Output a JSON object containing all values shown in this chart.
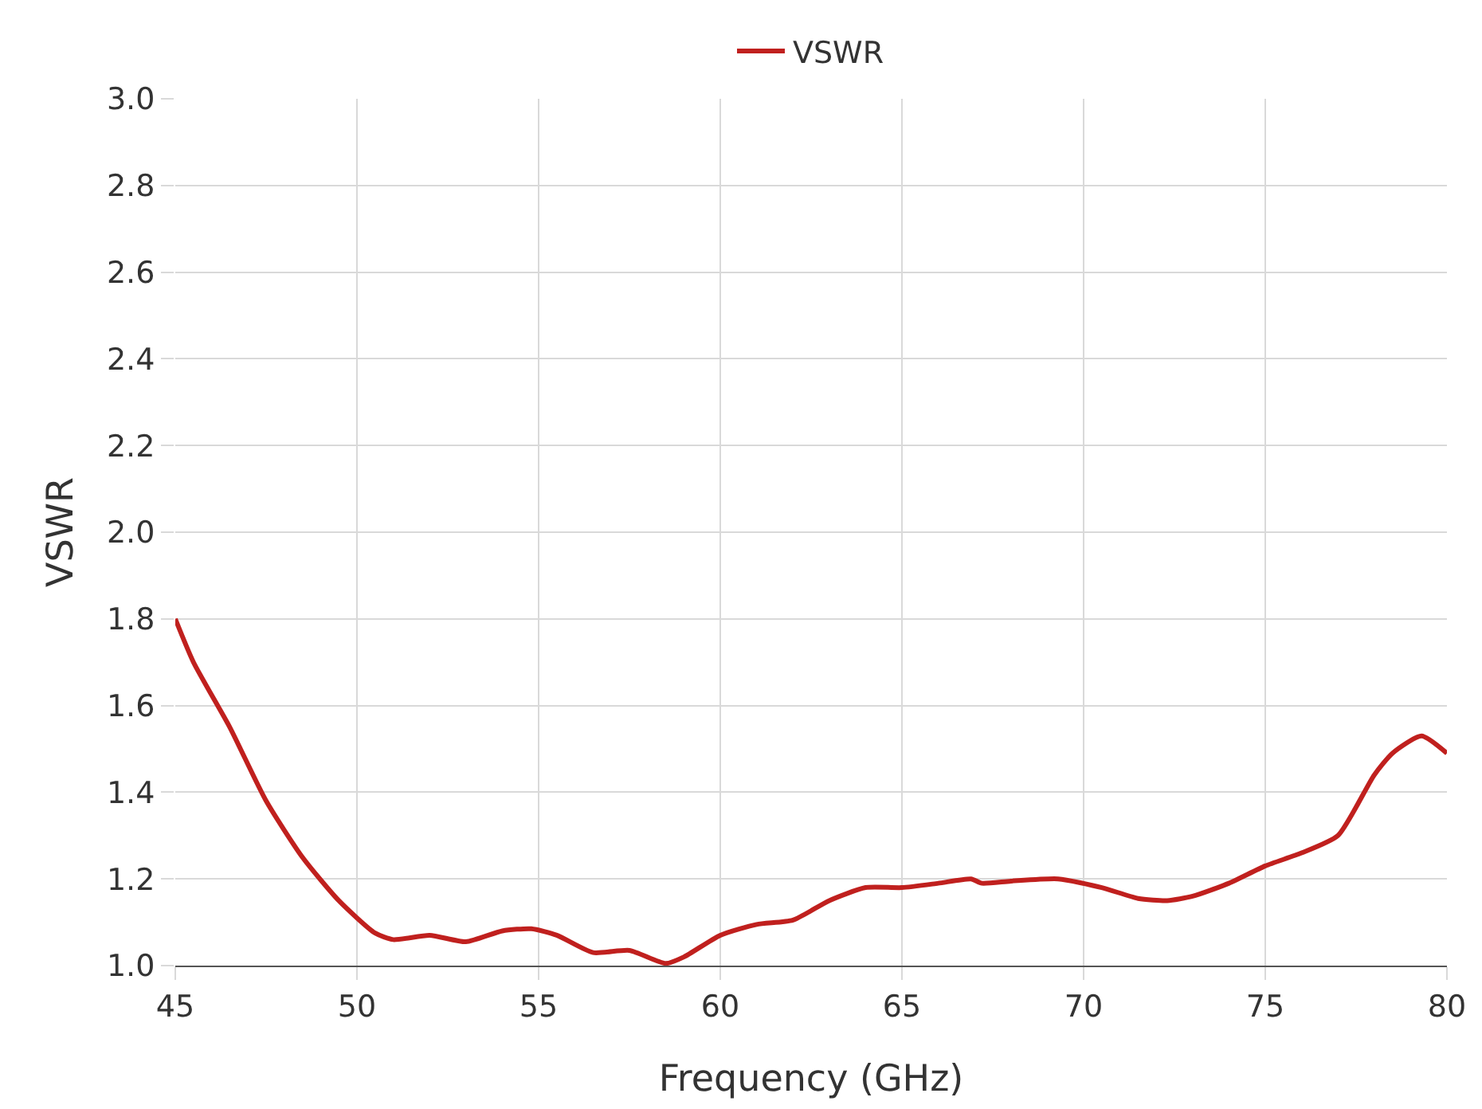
{
  "chart_data": {
    "type": "line",
    "xlabel": "Frequency (GHz)",
    "ylabel": "VSWR",
    "x": [
      45,
      45.5,
      46.5,
      47.5,
      48.5,
      49.5,
      50.5,
      51,
      52,
      53,
      54,
      54.8,
      55.5,
      56.5,
      57.5,
      58.5,
      59,
      60,
      61,
      62,
      63,
      64,
      65,
      66,
      66.9,
      67.2,
      68,
      69.3,
      70.5,
      71.5,
      72.3,
      73,
      74,
      75,
      76,
      77,
      78,
      78.5,
      79.3,
      80
    ],
    "series": [
      {
        "name": "VSWR",
        "color": "#c0201e",
        "values": [
          1.8,
          1.7,
          1.55,
          1.38,
          1.25,
          1.15,
          1.075,
          1.06,
          1.07,
          1.055,
          1.08,
          1.085,
          1.07,
          1.03,
          1.035,
          1.005,
          1.02,
          1.07,
          1.095,
          1.105,
          1.15,
          1.18,
          1.18,
          1.19,
          1.2,
          1.19,
          1.195,
          1.2,
          1.18,
          1.155,
          1.15,
          1.16,
          1.19,
          1.23,
          1.26,
          1.3,
          1.44,
          1.49,
          1.53,
          1.49
        ]
      }
    ],
    "xlim": [
      45,
      80
    ],
    "xticks": [
      45,
      50,
      55,
      60,
      65,
      70,
      75,
      80
    ],
    "ylim": [
      1.0,
      3.0
    ],
    "yticks": [
      {
        "value": 1.0,
        "label": "1.0"
      },
      1.2,
      1.4,
      1.6,
      1.8,
      {
        "value": 2.0,
        "label": "2.0"
      },
      2.2,
      2.4,
      2.6,
      2.8,
      {
        "value": 3.0,
        "label": "3.0"
      }
    ],
    "grid": true,
    "legend": "top",
    "marker": "none",
    "line_style": "solid"
  }
}
